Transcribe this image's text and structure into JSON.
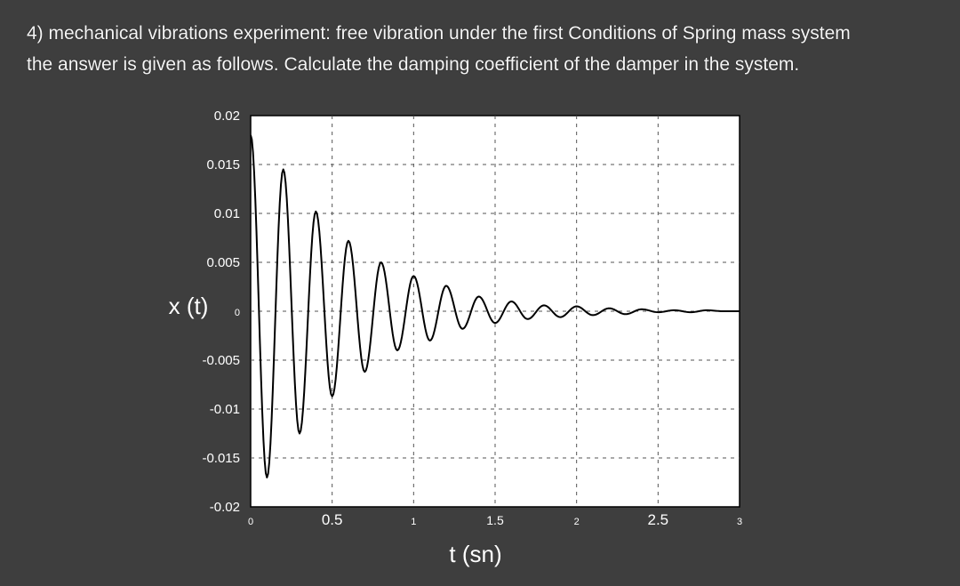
{
  "question": {
    "line1": "4) mechanical vibrations experiment: free vibration under the first Conditions of Spring mass system",
    "line2": "the answer is given as follows. Calculate the damping coefficient of the damper in the system."
  },
  "chart_data": {
    "type": "line",
    "title": "",
    "xlabel": "t (sn)",
    "ylabel": "x (t)",
    "xlim": [
      0,
      3
    ],
    "ylim": [
      -0.02,
      0.02
    ],
    "grid": true,
    "x_ticks": [
      "0",
      "0.5",
      "1",
      "1.5",
      "2",
      "2.5",
      "3"
    ],
    "y_ticks": [
      "0.02",
      "0.015",
      "0.01",
      "0.005",
      "0",
      "-0.005",
      "-0.01",
      "-0.015",
      "-0.02"
    ],
    "series": [
      {
        "name": "",
        "x": [
          0,
          0.1,
          0.2,
          0.3,
          0.4,
          0.5,
          0.6,
          0.7,
          0.8,
          0.9,
          1.0,
          1.1,
          1.2,
          1.3,
          1.4,
          1.5,
          1.6,
          1.7,
          1.8,
          1.9,
          2.0,
          2.1,
          2.2,
          2.3,
          2.4,
          2.5,
          2.6,
          2.7,
          2.8,
          2.9,
          3.0
        ],
        "y": [
          0.018,
          -0.017,
          0.0145,
          -0.0125,
          0.0102,
          -0.0087,
          0.0072,
          -0.0062,
          0.005,
          -0.004,
          0.0036,
          -0.003,
          0.0026,
          -0.0018,
          0.0015,
          -0.0012,
          0.001,
          -0.0008,
          0.0006,
          -0.0006,
          0.0005,
          -0.0004,
          0.0003,
          -0.0003,
          0.0002,
          -0.0001,
          0.0001,
          -0.0001,
          0.0001,
          0.0,
          0.0
        ]
      }
    ],
    "colors": {
      "line": "#000000",
      "plot_bg": "#ffffff",
      "grid": "#555555",
      "page_bg": "#3e3e3e",
      "text": "#ffffff"
    }
  }
}
